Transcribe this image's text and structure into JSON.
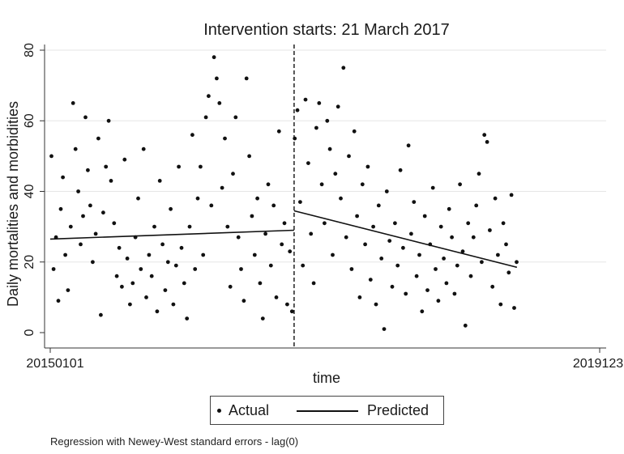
{
  "chart_data": {
    "type": "scatter",
    "title": "Intervention starts: 21 March 2017",
    "xlabel": "time",
    "ylabel": "Daily mortalities and morbidities",
    "x_tick_labels": [
      "20150101",
      "2019123"
    ],
    "y_ticks": [
      0,
      20,
      40,
      60,
      80
    ],
    "ylim": [
      0,
      82
    ],
    "grid": true,
    "legend_position": "bottom",
    "intervention_date": "2017-03-21",
    "series": [
      {
        "name": "Actual",
        "marker": "dot",
        "description_points": "daily counts (date, value) — representative sample",
        "points": [
          [
            "2015-01-05",
            50
          ],
          [
            "2015-01-12",
            18
          ],
          [
            "2015-01-20",
            27
          ],
          [
            "2015-01-28",
            9
          ],
          [
            "2015-02-05",
            35
          ],
          [
            "2015-02-12",
            44
          ],
          [
            "2015-02-20",
            22
          ],
          [
            "2015-03-01",
            12
          ],
          [
            "2015-03-10",
            30
          ],
          [
            "2015-03-18",
            65
          ],
          [
            "2015-03-26",
            52
          ],
          [
            "2015-04-04",
            40
          ],
          [
            "2015-04-12",
            25
          ],
          [
            "2015-04-20",
            33
          ],
          [
            "2015-04-28",
            61
          ],
          [
            "2015-05-06",
            46
          ],
          [
            "2015-05-14",
            36
          ],
          [
            "2015-05-22",
            20
          ],
          [
            "2015-06-01",
            28
          ],
          [
            "2015-06-10",
            55
          ],
          [
            "2015-06-18",
            5
          ],
          [
            "2015-06-26",
            34
          ],
          [
            "2015-07-05",
            47
          ],
          [
            "2015-07-14",
            60
          ],
          [
            "2015-07-22",
            43
          ],
          [
            "2015-08-01",
            31
          ],
          [
            "2015-08-10",
            16
          ],
          [
            "2015-08-18",
            24
          ],
          [
            "2015-08-27",
            13
          ],
          [
            "2015-09-05",
            49
          ],
          [
            "2015-09-14",
            21
          ],
          [
            "2015-09-23",
            8
          ],
          [
            "2015-10-02",
            14
          ],
          [
            "2015-10-11",
            27
          ],
          [
            "2015-10-20",
            38
          ],
          [
            "2015-10-29",
            18
          ],
          [
            "2015-11-07",
            52
          ],
          [
            "2015-11-16",
            10
          ],
          [
            "2015-11-25",
            22
          ],
          [
            "2015-12-04",
            16
          ],
          [
            "2015-12-13",
            30
          ],
          [
            "2015-12-22",
            6
          ],
          [
            "2015-12-31",
            43
          ],
          [
            "2016-01-09",
            25
          ],
          [
            "2016-01-18",
            12
          ],
          [
            "2016-01-27",
            20
          ],
          [
            "2016-02-05",
            35
          ],
          [
            "2016-02-14",
            8
          ],
          [
            "2016-02-23",
            19
          ],
          [
            "2016-03-03",
            47
          ],
          [
            "2016-03-12",
            24
          ],
          [
            "2016-03-21",
            14
          ],
          [
            "2016-03-30",
            4
          ],
          [
            "2016-04-08",
            30
          ],
          [
            "2016-04-17",
            56
          ],
          [
            "2016-04-26",
            18
          ],
          [
            "2016-05-05",
            38
          ],
          [
            "2016-05-14",
            47
          ],
          [
            "2016-05-23",
            22
          ],
          [
            "2016-06-01",
            61
          ],
          [
            "2016-06-10",
            67
          ],
          [
            "2016-06-19",
            36
          ],
          [
            "2016-06-28",
            78
          ],
          [
            "2016-07-07",
            72
          ],
          [
            "2016-07-16",
            65
          ],
          [
            "2016-07-25",
            41
          ],
          [
            "2016-08-03",
            55
          ],
          [
            "2016-08-12",
            30
          ],
          [
            "2016-08-21",
            13
          ],
          [
            "2016-08-30",
            45
          ],
          [
            "2016-09-08",
            61
          ],
          [
            "2016-09-17",
            27
          ],
          [
            "2016-09-26",
            18
          ],
          [
            "2016-10-05",
            9
          ],
          [
            "2016-10-14",
            72
          ],
          [
            "2016-10-23",
            50
          ],
          [
            "2016-11-01",
            33
          ],
          [
            "2016-11-10",
            22
          ],
          [
            "2016-11-19",
            38
          ],
          [
            "2016-11-28",
            14
          ],
          [
            "2016-12-07",
            4
          ],
          [
            "2016-12-16",
            28
          ],
          [
            "2016-12-25",
            42
          ],
          [
            "2017-01-03",
            19
          ],
          [
            "2017-01-12",
            36
          ],
          [
            "2017-01-21",
            10
          ],
          [
            "2017-01-30",
            57
          ],
          [
            "2017-02-08",
            25
          ],
          [
            "2017-02-17",
            31
          ],
          [
            "2017-02-26",
            8
          ],
          [
            "2017-03-07",
            23
          ],
          [
            "2017-03-14",
            6
          ],
          [
            "2017-03-23",
            55
          ],
          [
            "2017-04-01",
            63
          ],
          [
            "2017-04-10",
            37
          ],
          [
            "2017-04-19",
            19
          ],
          [
            "2017-04-28",
            66
          ],
          [
            "2017-05-07",
            48
          ],
          [
            "2017-05-16",
            28
          ],
          [
            "2017-05-25",
            14
          ],
          [
            "2017-06-03",
            58
          ],
          [
            "2017-06-12",
            65
          ],
          [
            "2017-06-21",
            42
          ],
          [
            "2017-06-30",
            31
          ],
          [
            "2017-07-09",
            60
          ],
          [
            "2017-07-18",
            52
          ],
          [
            "2017-07-27",
            22
          ],
          [
            "2017-08-05",
            45
          ],
          [
            "2017-08-14",
            64
          ],
          [
            "2017-08-23",
            38
          ],
          [
            "2017-09-01",
            75
          ],
          [
            "2017-09-10",
            27
          ],
          [
            "2017-09-19",
            50
          ],
          [
            "2017-09-28",
            18
          ],
          [
            "2017-10-07",
            57
          ],
          [
            "2017-10-16",
            33
          ],
          [
            "2017-10-25",
            10
          ],
          [
            "2017-11-03",
            42
          ],
          [
            "2017-11-12",
            25
          ],
          [
            "2017-11-21",
            47
          ],
          [
            "2017-11-30",
            15
          ],
          [
            "2017-12-09",
            30
          ],
          [
            "2017-12-18",
            8
          ],
          [
            "2017-12-27",
            36
          ],
          [
            "2018-01-05",
            21
          ],
          [
            "2018-01-14",
            1
          ],
          [
            "2018-01-23",
            40
          ],
          [
            "2018-02-01",
            26
          ],
          [
            "2018-02-10",
            13
          ],
          [
            "2018-02-19",
            31
          ],
          [
            "2018-02-28",
            19
          ],
          [
            "2018-03-09",
            46
          ],
          [
            "2018-03-18",
            24
          ],
          [
            "2018-03-27",
            11
          ],
          [
            "2018-04-05",
            53
          ],
          [
            "2018-04-14",
            28
          ],
          [
            "2018-04-23",
            37
          ],
          [
            "2018-05-02",
            16
          ],
          [
            "2018-05-11",
            22
          ],
          [
            "2018-05-20",
            6
          ],
          [
            "2018-05-29",
            33
          ],
          [
            "2018-06-07",
            12
          ],
          [
            "2018-06-16",
            25
          ],
          [
            "2018-06-25",
            41
          ],
          [
            "2018-07-04",
            18
          ],
          [
            "2018-07-13",
            9
          ],
          [
            "2018-07-22",
            30
          ],
          [
            "2018-07-31",
            21
          ],
          [
            "2018-08-09",
            14
          ],
          [
            "2018-08-18",
            35
          ],
          [
            "2018-08-27",
            27
          ],
          [
            "2018-09-05",
            11
          ],
          [
            "2018-09-14",
            19
          ],
          [
            "2018-09-23",
            42
          ],
          [
            "2018-10-02",
            23
          ],
          [
            "2018-10-11",
            2
          ],
          [
            "2018-10-20",
            31
          ],
          [
            "2018-10-29",
            16
          ],
          [
            "2018-11-07",
            27
          ],
          [
            "2018-11-16",
            36
          ],
          [
            "2018-11-25",
            45
          ],
          [
            "2018-12-04",
            20
          ],
          [
            "2018-12-13",
            56
          ],
          [
            "2018-12-22",
            54
          ],
          [
            "2018-12-31",
            29
          ],
          [
            "2019-01-09",
            13
          ],
          [
            "2019-01-18",
            38
          ],
          [
            "2019-01-27",
            22
          ],
          [
            "2019-02-05",
            8
          ],
          [
            "2019-02-14",
            31
          ],
          [
            "2019-02-23",
            25
          ],
          [
            "2019-03-04",
            17
          ],
          [
            "2019-03-13",
            39
          ],
          [
            "2019-03-22",
            7
          ],
          [
            "2019-03-30",
            20
          ]
        ]
      },
      {
        "name": "Predicted",
        "marker": "line",
        "segments": [
          {
            "from": [
              "2015-01-01",
              26.5
            ],
            "to": [
              "2017-03-21",
              29.0
            ]
          },
          {
            "from": [
              "2017-03-21",
              34.5
            ],
            "to": [
              "2019-03-31",
              18.5
            ]
          }
        ]
      }
    ],
    "legend": [
      "Actual",
      "Predicted"
    ]
  },
  "footnote": "Regression with Newey-West standard errors - lag(0)"
}
